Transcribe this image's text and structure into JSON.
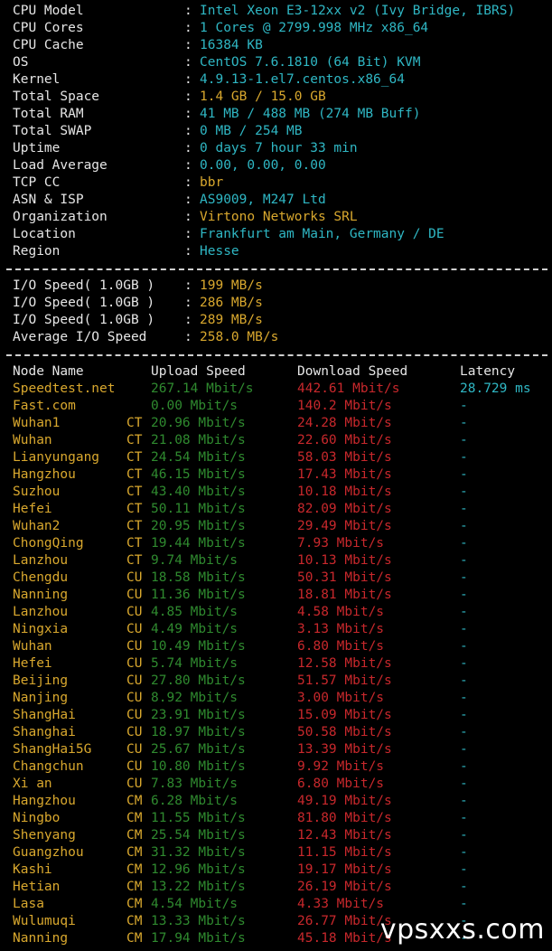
{
  "sysinfo": [
    {
      "label": "CPU Model",
      "value": "Intel Xeon E3-12xx v2 (Ivy Bridge, IBRS)",
      "color": "cy"
    },
    {
      "label": "CPU Cores",
      "value": "1 Cores @ 2799.998 MHz x86_64",
      "color": "cy"
    },
    {
      "label": "CPU Cache",
      "value": "16384 KB",
      "color": "cy"
    },
    {
      "label": "OS",
      "value": "CentOS 7.6.1810 (64 Bit) KVM",
      "color": "cy"
    },
    {
      "label": "Kernel",
      "value": "4.9.13-1.el7.centos.x86_64",
      "color": "cy"
    },
    {
      "label": "Total Space",
      "value": "1.4 GB / 15.0 GB",
      "color": "yl"
    },
    {
      "label": "Total RAM",
      "value": "41 MB / 488 MB (274 MB Buff)",
      "color": "cy"
    },
    {
      "label": "Total SWAP",
      "value": "0 MB / 254 MB",
      "color": "cy"
    },
    {
      "label": "Uptime",
      "value": "0 days 7 hour 33 min",
      "color": "cy"
    },
    {
      "label": "Load Average",
      "value": "0.00, 0.00, 0.00",
      "color": "cy"
    },
    {
      "label": "TCP CC",
      "value": "bbr",
      "color": "yl"
    },
    {
      "label": "ASN & ISP",
      "value": "AS9009, M247 Ltd",
      "color": "cy"
    },
    {
      "label": "Organization",
      "value": "Virtono Networks SRL",
      "color": "yl"
    },
    {
      "label": "Location",
      "value": "Frankfurt am Main, Germany / DE",
      "color": "cy"
    },
    {
      "label": "Region",
      "value": "Hesse",
      "color": "cy"
    }
  ],
  "io": [
    {
      "label": "I/O Speed( 1.0GB )",
      "value": "199 MB/s"
    },
    {
      "label": "I/O Speed( 1.0GB )",
      "value": "286 MB/s"
    },
    {
      "label": "I/O Speed( 1.0GB )",
      "value": "289 MB/s"
    },
    {
      "label": "Average I/O Speed",
      "value": "258.0 MB/s"
    }
  ],
  "colon": ":",
  "speed_header": {
    "node": "Node Name",
    "upload": "Upload Speed",
    "download": "Download Speed",
    "latency": "Latency"
  },
  "speed": [
    {
      "node": "Speedtest.net",
      "isp": "",
      "upload": "267.14 Mbit/s",
      "download": "442.61 Mbit/s",
      "latency": "28.729 ms"
    },
    {
      "node": "Fast.com",
      "isp": "",
      "upload": "0.00 Mbit/s",
      "download": "140.2 Mbit/s",
      "latency": "-"
    },
    {
      "node": "Wuhan1",
      "isp": "CT",
      "upload": "20.96 Mbit/s",
      "download": "24.28 Mbit/s",
      "latency": "-"
    },
    {
      "node": "Wuhan",
      "isp": "CT",
      "upload": "21.08 Mbit/s",
      "download": "22.60 Mbit/s",
      "latency": "-"
    },
    {
      "node": "Lianyungang",
      "isp": "CT",
      "upload": "24.54 Mbit/s",
      "download": "58.03 Mbit/s",
      "latency": "-"
    },
    {
      "node": "Hangzhou",
      "isp": "CT",
      "upload": "46.15 Mbit/s",
      "download": "17.43 Mbit/s",
      "latency": "-"
    },
    {
      "node": "Suzhou",
      "isp": "CT",
      "upload": "43.40 Mbit/s",
      "download": "10.18 Mbit/s",
      "latency": "-"
    },
    {
      "node": "Hefei",
      "isp": "CT",
      "upload": "50.11 Mbit/s",
      "download": "82.09 Mbit/s",
      "latency": "-"
    },
    {
      "node": "Wuhan2",
      "isp": "CT",
      "upload": "20.95 Mbit/s",
      "download": "29.49 Mbit/s",
      "latency": "-"
    },
    {
      "node": "ChongQing",
      "isp": "CT",
      "upload": "19.44 Mbit/s",
      "download": "7.93 Mbit/s",
      "latency": "-"
    },
    {
      "node": "Lanzhou",
      "isp": "CT",
      "upload": "9.74 Mbit/s",
      "download": "10.13 Mbit/s",
      "latency": "-"
    },
    {
      "node": "Chengdu",
      "isp": "CU",
      "upload": "18.58 Mbit/s",
      "download": "50.31 Mbit/s",
      "latency": "-"
    },
    {
      "node": "Nanning",
      "isp": "CU",
      "upload": "11.36 Mbit/s",
      "download": "18.81 Mbit/s",
      "latency": "-"
    },
    {
      "node": "Lanzhou",
      "isp": "CU",
      "upload": "4.85 Mbit/s",
      "download": "4.58 Mbit/s",
      "latency": "-"
    },
    {
      "node": "Ningxia",
      "isp": "CU",
      "upload": "4.49 Mbit/s",
      "download": "3.13 Mbit/s",
      "latency": "-"
    },
    {
      "node": "Wuhan",
      "isp": "CU",
      "upload": "10.49 Mbit/s",
      "download": "6.80 Mbit/s",
      "latency": "-"
    },
    {
      "node": "Hefei",
      "isp": "CU",
      "upload": "5.74 Mbit/s",
      "download": "12.58 Mbit/s",
      "latency": "-"
    },
    {
      "node": "Beijing",
      "isp": "CU",
      "upload": "27.80 Mbit/s",
      "download": "51.57 Mbit/s",
      "latency": "-"
    },
    {
      "node": "Nanjing",
      "isp": "CU",
      "upload": "8.92 Mbit/s",
      "download": "3.00 Mbit/s",
      "latency": "-"
    },
    {
      "node": "ShangHai",
      "isp": "CU",
      "upload": "23.91 Mbit/s",
      "download": "15.09 Mbit/s",
      "latency": "-"
    },
    {
      "node": "Shanghai",
      "isp": "CU",
      "upload": "18.97 Mbit/s",
      "download": "50.58 Mbit/s",
      "latency": "-"
    },
    {
      "node": "ShangHai5G",
      "isp": "CU",
      "upload": "25.67 Mbit/s",
      "download": "13.39 Mbit/s",
      "latency": "-"
    },
    {
      "node": "Changchun",
      "isp": "CU",
      "upload": "10.80 Mbit/s",
      "download": "9.92 Mbit/s",
      "latency": "-"
    },
    {
      "node": "Xi an",
      "isp": "CU",
      "upload": "7.83 Mbit/s",
      "download": "6.80 Mbit/s",
      "latency": "-"
    },
    {
      "node": "Hangzhou",
      "isp": "CM",
      "upload": "6.28 Mbit/s",
      "download": "49.19 Mbit/s",
      "latency": "-"
    },
    {
      "node": "Ningbo",
      "isp": "CM",
      "upload": "11.55 Mbit/s",
      "download": "81.80 Mbit/s",
      "latency": "-"
    },
    {
      "node": "Shenyang",
      "isp": "CM",
      "upload": "25.54 Mbit/s",
      "download": "12.43 Mbit/s",
      "latency": "-"
    },
    {
      "node": "Guangzhou",
      "isp": "CM",
      "upload": "31.32 Mbit/s",
      "download": "11.15 Mbit/s",
      "latency": "-"
    },
    {
      "node": "Kashi",
      "isp": "CM",
      "upload": "12.96 Mbit/s",
      "download": "19.17 Mbit/s",
      "latency": "-"
    },
    {
      "node": "Hetian",
      "isp": "CM",
      "upload": "13.22 Mbit/s",
      "download": "26.19 Mbit/s",
      "latency": "-"
    },
    {
      "node": "Lasa",
      "isp": "CM",
      "upload": "4.54 Mbit/s",
      "download": "4.33 Mbit/s",
      "latency": "-"
    },
    {
      "node": "Wulumuqi",
      "isp": "CM",
      "upload": "13.33 Mbit/s",
      "download": "26.77 Mbit/s",
      "latency": "-"
    },
    {
      "node": "Nanning",
      "isp": "CM",
      "upload": "17.94 Mbit/s",
      "download": "45.18 Mbit/s",
      "latency": "-"
    }
  ],
  "watermark": "vpsxxs.com"
}
